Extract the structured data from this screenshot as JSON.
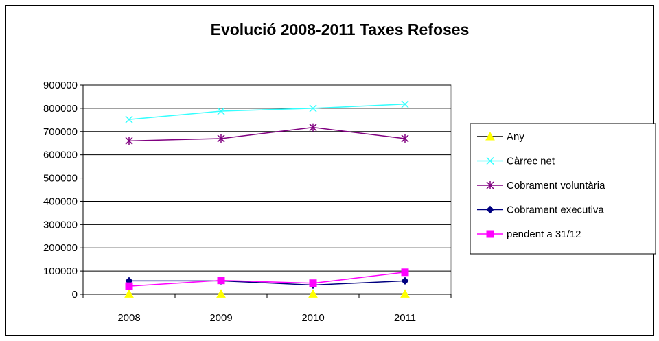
{
  "chart_data": {
    "type": "line",
    "title": "Evolució 2008-2011 Taxes Refoses",
    "xlabel": "",
    "ylabel": "",
    "categories": [
      "2008",
      "2009",
      "2010",
      "2011"
    ],
    "ylim": [
      0,
      900000
    ],
    "yticks": [
      0,
      100000,
      200000,
      300000,
      400000,
      500000,
      600000,
      700000,
      800000,
      900000
    ],
    "grid": true,
    "legend_position": "right",
    "series": [
      {
        "name": "Any",
        "values": [
          2008,
          2009,
          2010,
          2011
        ],
        "color": "#FFFF00",
        "marker": "triangle",
        "line_color": "#000000"
      },
      {
        "name": "Càrrec net",
        "values": [
          752000,
          788000,
          800000,
          818000
        ],
        "color": "#33FFFF",
        "marker": "x"
      },
      {
        "name": "Cobrament voluntària",
        "values": [
          660000,
          670000,
          718000,
          670000
        ],
        "color": "#800080",
        "marker": "asterisk"
      },
      {
        "name": "Cobrament executiva",
        "values": [
          58000,
          58000,
          40000,
          58000
        ],
        "color": "#000080",
        "marker": "diamond"
      },
      {
        "name": "pendent a 31/12",
        "values": [
          35000,
          60000,
          48000,
          95000
        ],
        "color": "#FF00FF",
        "marker": "square"
      }
    ]
  }
}
